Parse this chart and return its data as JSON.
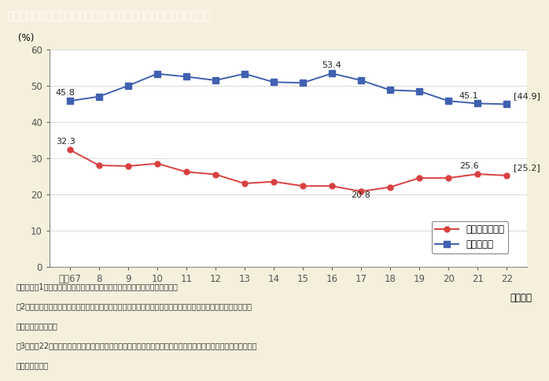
{
  "title": "第１－１－９図　地方公務員採用試験合格者に占める女性割合の推移",
  "title_bg_color": "#8B7355",
  "title_text_color": "#ffffff",
  "background_color": "#F5F0DC",
  "plot_bg_color": "#ffffff",
  "years": [
    "平成67",
    "8",
    "9",
    "10",
    "11",
    "12",
    "13",
    "14",
    "15",
    "16",
    "17",
    "18",
    "19",
    "20",
    "21",
    "22"
  ],
  "red_data": [
    32.3,
    28.0,
    27.8,
    28.5,
    26.2,
    25.5,
    23.0,
    23.5,
    22.3,
    22.3,
    20.8,
    22.0,
    24.5,
    24.5,
    25.6,
    25.2
  ],
  "blue_data": [
    45.8,
    47.0,
    50.0,
    53.3,
    52.5,
    51.5,
    53.3,
    51.0,
    50.8,
    53.4,
    51.5,
    48.8,
    48.5,
    45.8,
    45.1,
    44.9
  ],
  "red_label": "都道府県合格者",
  "blue_label": "市区合格者",
  "red_color": "#d94040",
  "blue_color": "#4060b0",
  "ylabel": "(%)",
  "xlabel": "（年度）",
  "ylim": [
    0,
    60
  ],
  "yticks": [
    0,
    10,
    20,
    30,
    40,
    50,
    60
  ],
  "note_lines": [
    "（備考）、1．総務省「地方公共団体の勤務条件等に関する調査」より作成。",
    "　2．女性合格者，男性合格者のほか，申込書に性別記入欄を設けていない試験があることから性別不明の合格者",
    "　　　が存在する。",
    "　3．平成22年度は，東日本大震災の影響により調査が困難となった２団体（岩手県の１市１町）を除いて集計し",
    "　　　ている。"
  ]
}
